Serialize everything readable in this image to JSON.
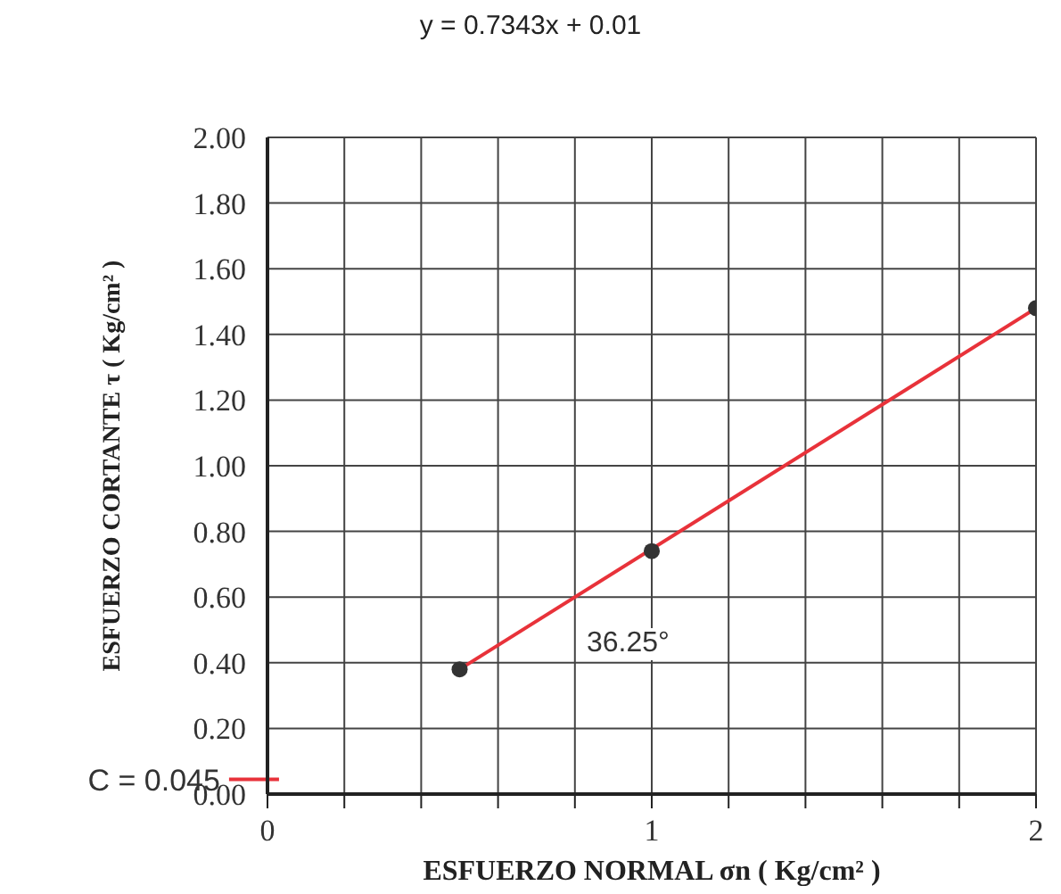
{
  "chart_data": {
    "type": "scatter",
    "title": "y = 0.7343x + 0.01",
    "xlabel": "ESFUERZO NORMAL σn ( Kg/cm² )",
    "ylabel": "ESFUERZO CORTANTE τ ( Kg/cm² )",
    "series": [
      {
        "type": "line",
        "x": [
          0.5,
          2
        ],
        "values": [
          0.38,
          1.48
        ],
        "color": "#e8323a",
        "marker": "none"
      },
      {
        "x": [
          0.5,
          1,
          2
        ],
        "values": [
          0.38,
          0.74,
          1.48
        ],
        "color": "#333333"
      }
    ],
    "xlim": [
      0,
      2
    ],
    "xticks": [
      0,
      {
        "value": 0.2,
        "label": null
      },
      {
        "value": 0.4,
        "label": null
      },
      {
        "value": 0.6,
        "label": null
      },
      {
        "value": 0.8,
        "label": null
      },
      1,
      {
        "value": 1.2,
        "label": null
      },
      {
        "value": 1.4,
        "label": null
      },
      {
        "value": 1.6,
        "label": null
      },
      {
        "value": 1.8,
        "label": null
      },
      2
    ],
    "ylim": [
      0,
      2
    ],
    "yticks": [
      {
        "value": 0,
        "label": "0.00"
      },
      {
        "value": 0.2,
        "label": "0.20"
      },
      {
        "value": 0.4,
        "label": "0.40"
      },
      {
        "value": 0.6,
        "label": "0.60"
      },
      {
        "value": 0.8,
        "label": "0.80"
      },
      {
        "value": 1,
        "label": "1.00"
      },
      {
        "value": 1.2,
        "label": "1.20"
      },
      {
        "value": 1.4,
        "label": "1.40"
      },
      {
        "value": 1.6,
        "label": "1.60"
      },
      {
        "value": 1.8,
        "label": "1.80"
      },
      {
        "value": 2,
        "label": "2.00"
      }
    ],
    "ref_lines": [
      {
        "axis": "y",
        "value": 0.045,
        "label": "C = 0.045",
        "color": "#e8323a"
      }
    ],
    "annotations": [
      "36.25°"
    ],
    "grid": true,
    "marker": "circle"
  }
}
